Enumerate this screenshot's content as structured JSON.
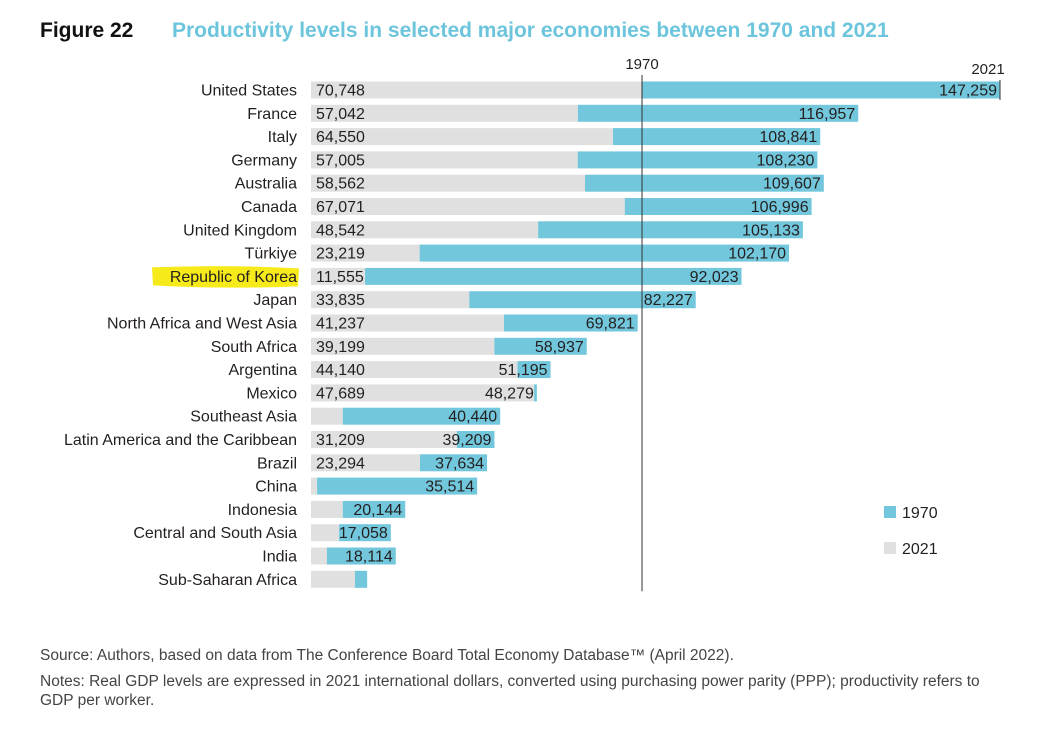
{
  "figure_label": "Figure 22",
  "colors": {
    "title": "#6cc5dc",
    "bar_1970": "#72c7dc",
    "bar_2021": "#e0e0e0",
    "highlight": "#f7ea1a",
    "text": "#231f20"
  },
  "source": "Source: Authors, based on data from The Conference Board Total Economy Database™ (April 2022).",
  "notes": "Notes: Real GDP levels are expressed in 2021 international dollars, converted using purchasing power parity (PPP); productivity refers to GDP per worker.",
  "chart_data": {
    "type": "bar",
    "orientation": "horizontal",
    "title": "Productivity levels in selected major economies between 1970 and 2021",
    "xlim": [
      0,
      147259
    ],
    "reference_lines": [
      {
        "label": "1970",
        "value": 70748
      },
      {
        "label": "2021",
        "value": 147259
      }
    ],
    "legend": {
      "placement": "right",
      "entries": [
        {
          "label": "1970",
          "color": "#72c7dc"
        },
        {
          "label": "2021",
          "color": "#e0e0e0"
        }
      ]
    },
    "highlighted_category": "Republic of Korea",
    "categories": [
      "United States",
      "France",
      "Italy",
      "Germany",
      "Australia",
      "Canada",
      "United Kingdom",
      "Türkiye",
      "Republic of Korea",
      "Japan",
      "North Africa and West Asia",
      "South Africa",
      "Argentina",
      "Mexico",
      "Southeast Asia",
      "Latin America and the Caribbean",
      "Brazil",
      "China",
      "Indonesia",
      "Central and South Asia",
      "India",
      "Sub-Saharan Africa"
    ],
    "series": [
      {
        "name": "1970",
        "values": [
          70748,
          57042,
          64550,
          57005,
          58562,
          67071,
          48542,
          23219,
          11555,
          33835,
          41237,
          39199,
          44140,
          47689,
          6800,
          31209,
          23294,
          1300,
          6800,
          6000,
          3400,
          9400
        ],
        "labels": [
          "70,748",
          "57,042",
          "64,550",
          "57,005",
          "58,562",
          "67,071",
          "48,542",
          "23,219",
          "11,555",
          "33,835",
          "41,237",
          "39,199",
          "44,140",
          "47,689",
          "",
          "31,209",
          "23,294",
          "",
          "",
          "",
          "",
          ""
        ]
      },
      {
        "name": "2021",
        "values": [
          147259,
          116957,
          108841,
          108230,
          109607,
          106996,
          105133,
          102170,
          92023,
          82227,
          69821,
          58937,
          51195,
          48279,
          40440,
          39209,
          37634,
          35514,
          20144,
          17058,
          18114,
          12000
        ],
        "labels": [
          "147,259",
          "116,957",
          "108,841",
          "108,230",
          "109,607",
          "106,996",
          "105,133",
          "102,170",
          "92,023",
          "82,227",
          "69,821",
          "58,937",
          "51,195",
          "48,279",
          "40,440",
          "39,209",
          "37,634",
          "35,514",
          "20,144",
          "17,058",
          "18,114",
          ""
        ]
      }
    ]
  }
}
